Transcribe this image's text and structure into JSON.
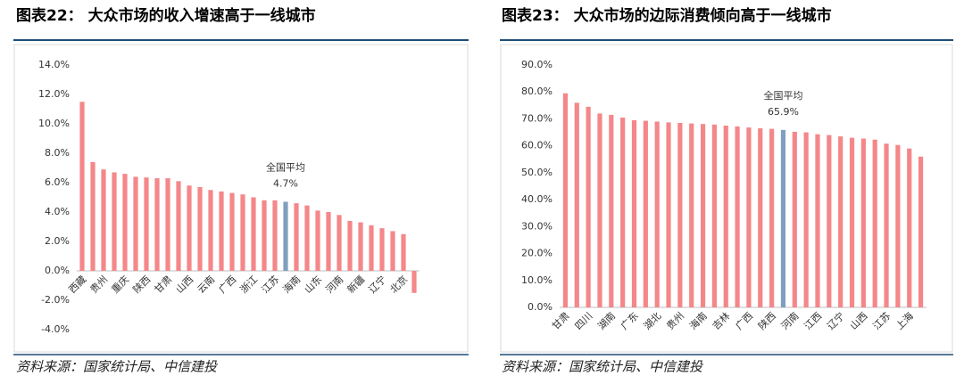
{
  "chart_data": [
    {
      "type": "bar",
      "title": "图表22：   大众市场的收入增速高于一线城市",
      "categories": [
        "西藏",
        null,
        "贵州",
        null,
        "重庆",
        null,
        "陕西",
        null,
        "甘肃",
        null,
        "山西",
        null,
        "云南",
        null,
        "广西",
        null,
        "浙江",
        null,
        "江苏",
        null,
        "海南",
        null,
        "山东",
        null,
        "河南",
        null,
        "新疆",
        null,
        "辽宁",
        null,
        "北京",
        null
      ],
      "values": [
        11.5,
        7.4,
        6.9,
        6.7,
        6.6,
        6.4,
        6.35,
        6.3,
        6.3,
        6.1,
        5.8,
        5.7,
        5.5,
        5.4,
        5.3,
        5.2,
        5.0,
        4.8,
        4.8,
        4.7,
        4.6,
        4.45,
        4.1,
        4.0,
        3.8,
        3.4,
        3.3,
        3.1,
        2.9,
        2.7,
        2.5,
        -1.5
      ],
      "value_labels": [
        null,
        null,
        null,
        null,
        null,
        null,
        null,
        null,
        null,
        null,
        null,
        null,
        null,
        null,
        null,
        null,
        null,
        null,
        null,
        "4.7%",
        null,
        null,
        null,
        null,
        null,
        null,
        null,
        null,
        null,
        null,
        null,
        null
      ],
      "colors": [
        "#f4878a",
        "#f4878a",
        "#f4878a",
        "#f4878a",
        "#f4878a",
        "#f4878a",
        "#f4878a",
        "#f4878a",
        "#f4878a",
        "#f4878a",
        "#f4878a",
        "#f4878a",
        "#f4878a",
        "#f4878a",
        "#f4878a",
        "#f4878a",
        "#f4878a",
        "#f4878a",
        "#f4878a",
        "#7f9fc0",
        "#f4878a",
        "#f4878a",
        "#f4878a",
        "#f4878a",
        "#f4878a",
        "#f4878a",
        "#f4878a",
        "#f4878a",
        "#f4878a",
        "#f4878a",
        "#f4878a",
        "#f4878a"
      ],
      "annotation": "全国平均",
      "ylim": [
        -4,
        14
      ],
      "yticks": [
        {
          "value": -4,
          "label": "-4.0%"
        },
        {
          "value": -2,
          "label": "-2.0%"
        },
        {
          "value": 0,
          "label": "0.0%"
        },
        {
          "value": 2,
          "label": "2.0%"
        },
        {
          "value": 4,
          "label": "4.0%"
        },
        {
          "value": 6,
          "label": "6.0%"
        },
        {
          "value": 8,
          "label": "8.0%"
        },
        {
          "value": 10,
          "label": "10.0%"
        },
        {
          "value": 12,
          "label": "12.0%"
        },
        {
          "value": 14,
          "label": "14.0%"
        }
      ],
      "source": "资料来源：国家统计局、中信建投"
    },
    {
      "type": "bar",
      "title": "图表23：   大众市场的边际消费倾向高于一线城市",
      "categories": [
        "甘肃",
        null,
        "四川",
        null,
        "湖南",
        null,
        "广东",
        null,
        "湖北",
        null,
        "贵州",
        null,
        "海南",
        null,
        "吉林",
        null,
        "广西",
        null,
        "陕西",
        null,
        "河南",
        null,
        "江西",
        null,
        "辽宁",
        null,
        "山西",
        null,
        "江苏",
        null,
        "上海",
        null
      ],
      "values": [
        79.5,
        76,
        74.5,
        72,
        71.5,
        70.5,
        69.5,
        69.3,
        69,
        68.7,
        68.5,
        68.3,
        68.1,
        67.9,
        67.5,
        67.2,
        66.8,
        66.5,
        66.3,
        65.9,
        65.2,
        65,
        64.3,
        64,
        63.5,
        63,
        62.7,
        62.3,
        60.8,
        60.3,
        59,
        56
      ],
      "value_labels": [
        null,
        null,
        null,
        null,
        null,
        null,
        null,
        null,
        null,
        null,
        null,
        null,
        null,
        null,
        null,
        null,
        null,
        null,
        null,
        "65.9%",
        null,
        null,
        null,
        null,
        null,
        null,
        null,
        null,
        null,
        null,
        null,
        null
      ],
      "colors": [
        "#f4878a",
        "#f4878a",
        "#f4878a",
        "#f4878a",
        "#f4878a",
        "#f4878a",
        "#f4878a",
        "#f4878a",
        "#f4878a",
        "#f4878a",
        "#f4878a",
        "#f4878a",
        "#f4878a",
        "#f4878a",
        "#f4878a",
        "#f4878a",
        "#f4878a",
        "#f4878a",
        "#f4878a",
        "#7f9fc0",
        "#f4878a",
        "#f4878a",
        "#f4878a",
        "#f4878a",
        "#f4878a",
        "#f4878a",
        "#f4878a",
        "#f4878a",
        "#f4878a",
        "#f4878a",
        "#f4878a",
        "#f4878a"
      ],
      "annotation": "全国平均",
      "ylim": [
        0,
        90
      ],
      "yticks": [
        {
          "value": 0,
          "label": "0.0%"
        },
        {
          "value": 10,
          "label": "10.0%"
        },
        {
          "value": 20,
          "label": "20.0%"
        },
        {
          "value": 30,
          "label": "30.0%"
        },
        {
          "value": 40,
          "label": "40.0%"
        },
        {
          "value": 50,
          "label": "50.0%"
        },
        {
          "value": 60,
          "label": "60.0%"
        },
        {
          "value": 70,
          "label": "70.0%"
        },
        {
          "value": 80,
          "label": "80.0%"
        },
        {
          "value": 90,
          "label": "90.0%"
        }
      ],
      "source": "资料来源：国家统计局、中信建投"
    }
  ]
}
